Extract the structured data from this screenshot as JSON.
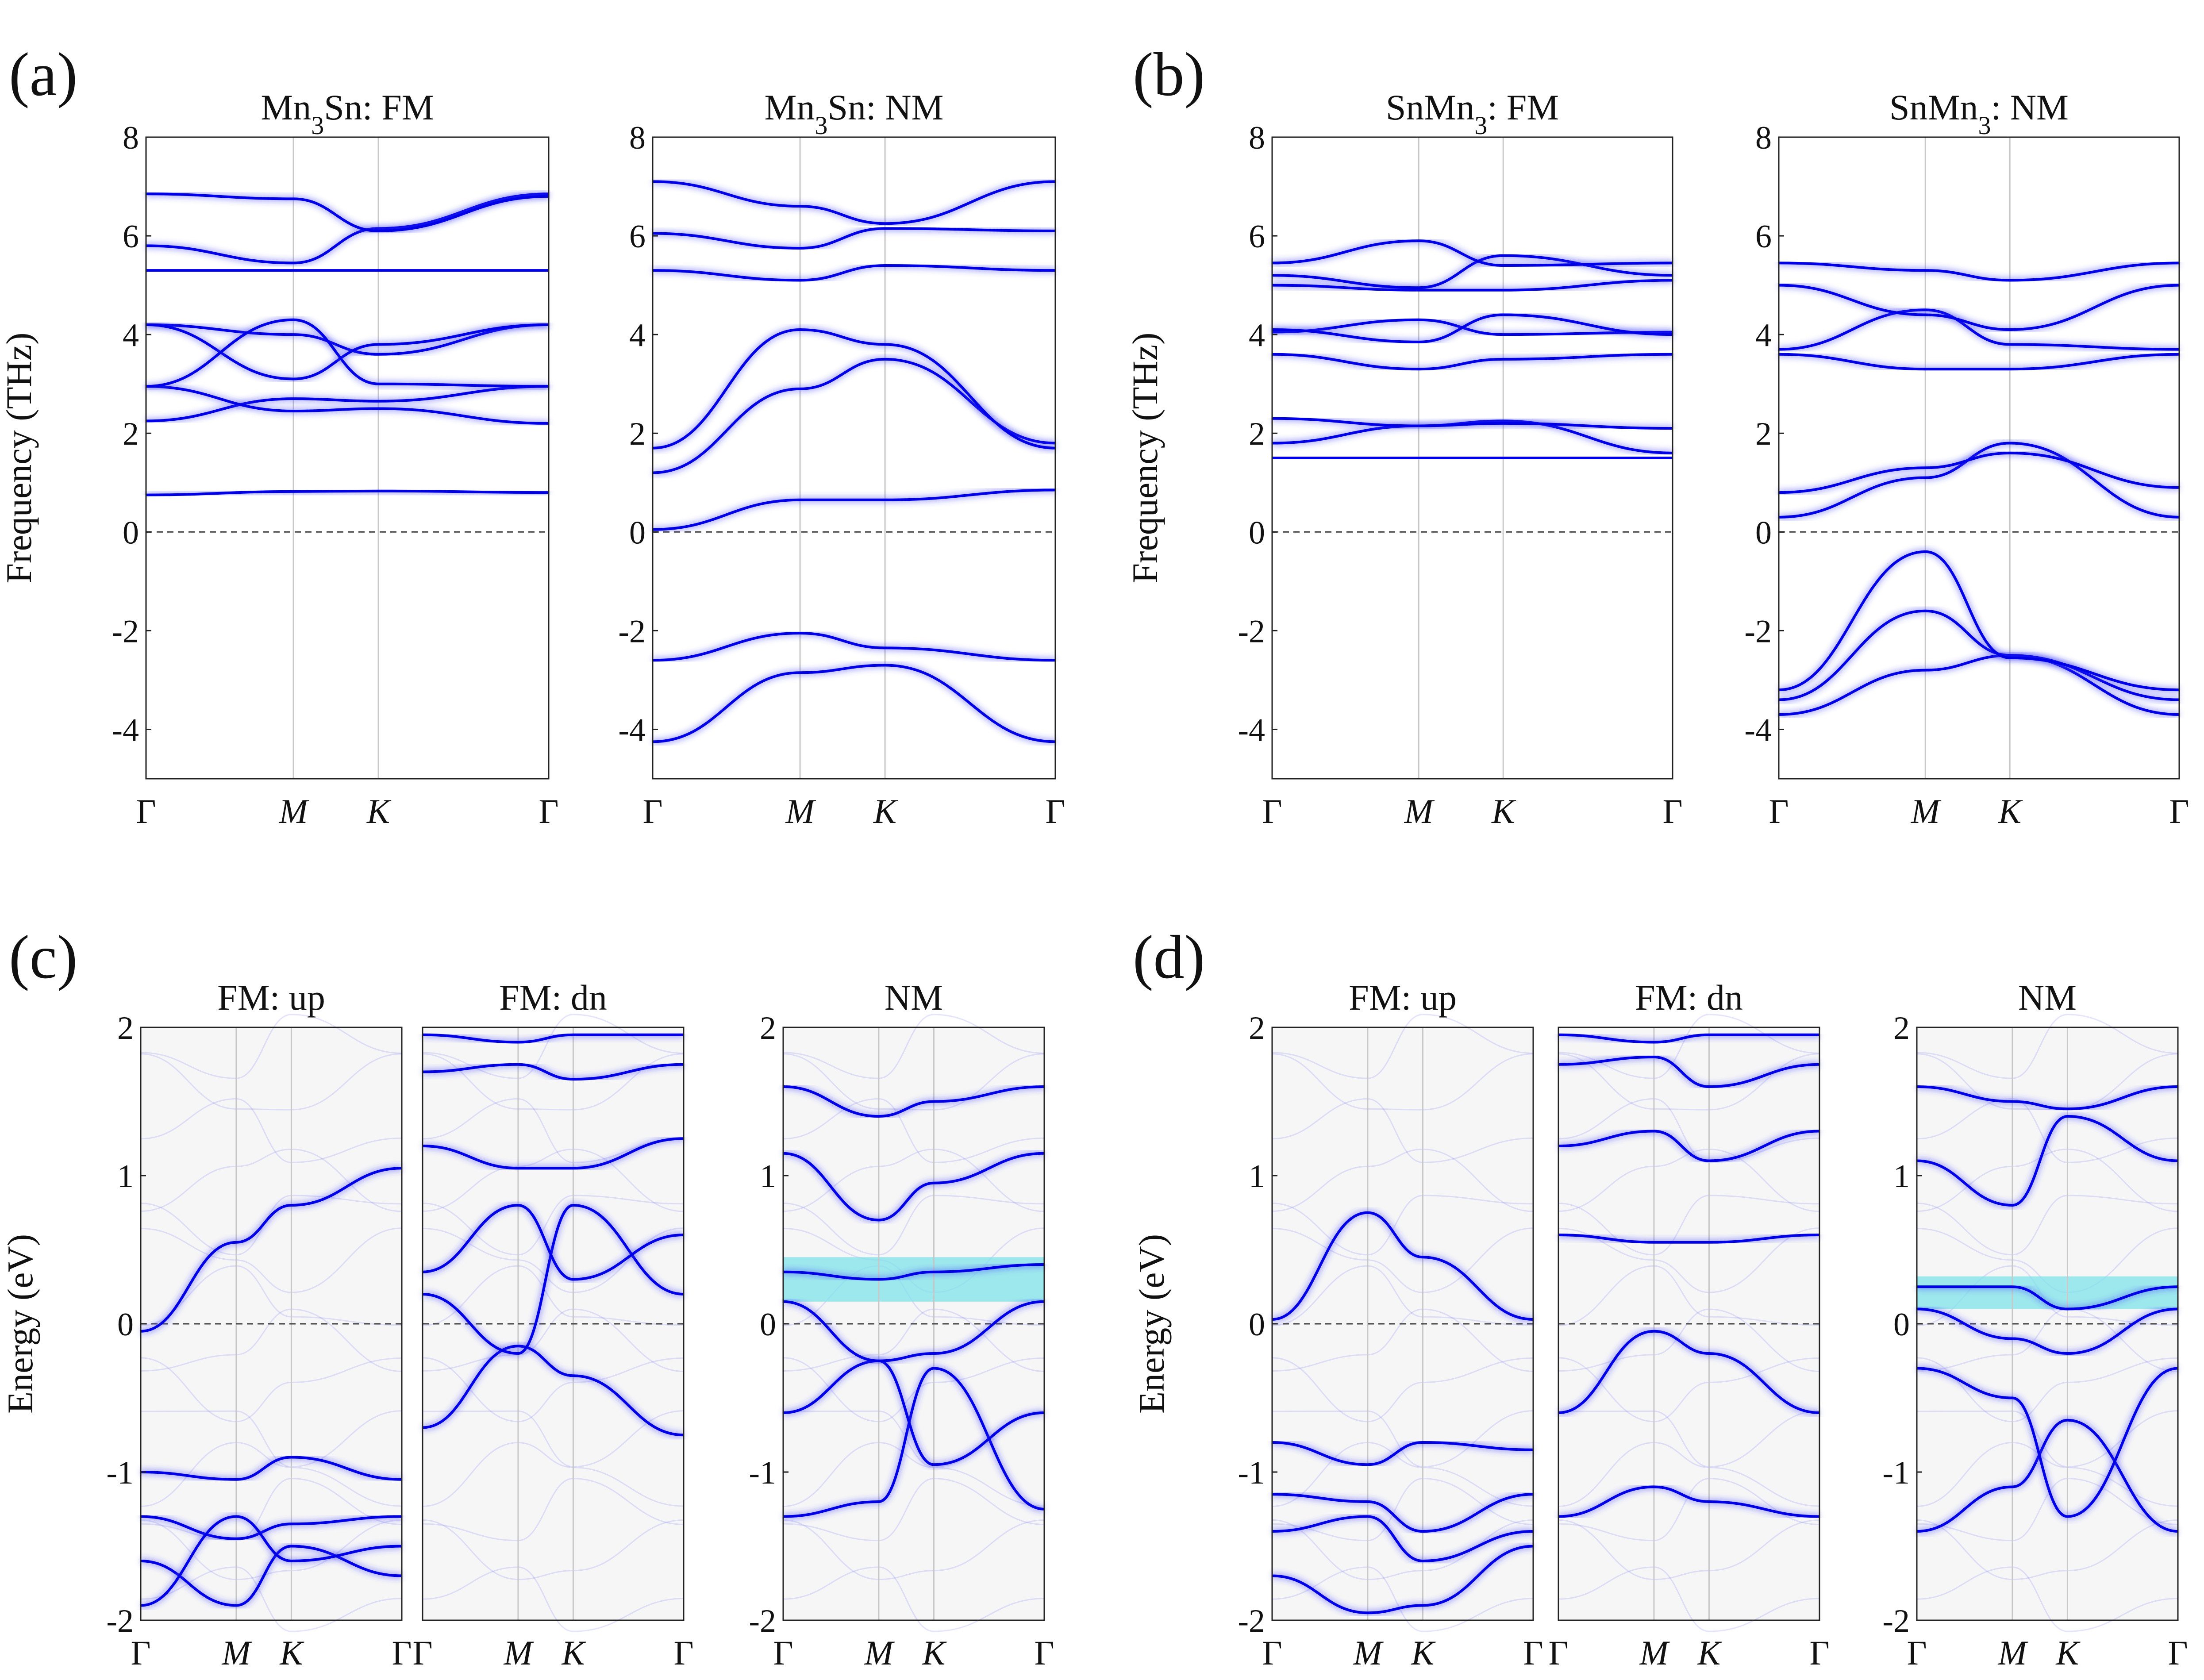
{
  "figure": {
    "panel_labels": [
      "(a)",
      "(b)",
      "(c)",
      "(d)"
    ]
  },
  "chart_data": [
    {
      "type": "line",
      "id": "a1",
      "panel": "(a)",
      "title": "Mn3Sn: FM",
      "title_parts": [
        "Mn",
        "3",
        "Sn:  FM"
      ],
      "ylabel": "Frequency (THz)",
      "ylim": [
        -5,
        8
      ],
      "yticks": [
        8,
        6,
        4,
        2,
        0,
        -2,
        -4
      ],
      "kpoints": [
        {
          "label": "Γ",
          "pos": 0
        },
        {
          "label": "M",
          "pos": 0.366
        },
        {
          "label": "K",
          "pos": 0.577
        },
        {
          "label": "Γ",
          "pos": 1
        }
      ],
      "zero_line": 0,
      "series": [
        {
          "name": "band1",
          "values": [
            0.75,
            0.82,
            0.83,
            0.8
          ]
        },
        {
          "name": "band2",
          "values": [
            2.25,
            2.7,
            2.65,
            2.95
          ]
        },
        {
          "name": "band3",
          "values": [
            2.95,
            2.45,
            2.5,
            2.2
          ]
        },
        {
          "name": "band4",
          "values": [
            4.2,
            4.0,
            3.6,
            4.2
          ]
        },
        {
          "name": "band5",
          "values": [
            4.2,
            3.1,
            3.8,
            4.2
          ]
        },
        {
          "name": "band6",
          "values": [
            2.95,
            4.3,
            3.0,
            2.95
          ]
        },
        {
          "name": "band7",
          "values": [
            5.3,
            5.3,
            5.3,
            5.3
          ]
        },
        {
          "name": "band8",
          "values": [
            5.8,
            5.45,
            6.15,
            6.85
          ]
        },
        {
          "name": "band9",
          "values": [
            6.85,
            6.75,
            6.1,
            6.8
          ]
        }
      ]
    },
    {
      "type": "line",
      "id": "a2",
      "panel": "(a)",
      "title": "Mn3Sn: NM",
      "title_parts": [
        "Mn",
        "3",
        "Sn:  NM"
      ],
      "ylabel": "",
      "ylim": [
        -5,
        8
      ],
      "yticks": [
        8,
        6,
        4,
        2,
        0,
        -2,
        -4
      ],
      "kpoints": [
        {
          "label": "Γ",
          "pos": 0
        },
        {
          "label": "M",
          "pos": 0.366
        },
        {
          "label": "K",
          "pos": 0.577
        },
        {
          "label": "Γ",
          "pos": 1
        }
      ],
      "zero_line": 0,
      "series": [
        {
          "name": "band1",
          "values": [
            -4.25,
            -2.85,
            -2.7,
            -4.25
          ]
        },
        {
          "name": "band2",
          "values": [
            -2.6,
            -2.05,
            -2.35,
            -2.6
          ]
        },
        {
          "name": "band3",
          "values": [
            0.05,
            0.65,
            0.65,
            0.85
          ]
        },
        {
          "name": "band4",
          "values": [
            1.2,
            2.9,
            3.5,
            1.8
          ]
        },
        {
          "name": "band5",
          "values": [
            1.7,
            4.1,
            3.8,
            1.7
          ]
        },
        {
          "name": "band6",
          "values": [
            5.3,
            5.1,
            5.4,
            5.3
          ]
        },
        {
          "name": "band7",
          "values": [
            6.05,
            5.75,
            6.15,
            6.1
          ]
        },
        {
          "name": "band8",
          "values": [
            7.1,
            6.6,
            6.25,
            7.1
          ]
        }
      ]
    },
    {
      "type": "line",
      "id": "b1",
      "panel": "(b)",
      "title": "SnMn3: FM",
      "title_parts": [
        "SnMn",
        "3",
        ":  FM"
      ],
      "ylabel": "Frequency (THz)",
      "ylim": [
        -5,
        8
      ],
      "yticks": [
        8,
        6,
        4,
        2,
        0,
        -2,
        -4
      ],
      "kpoints": [
        {
          "label": "Γ",
          "pos": 0
        },
        {
          "label": "M",
          "pos": 0.366
        },
        {
          "label": "K",
          "pos": 0.577
        },
        {
          "label": "Γ",
          "pos": 1
        }
      ],
      "zero_line": 0,
      "series": [
        {
          "name": "band1",
          "values": [
            1.5,
            1.5,
            1.5,
            1.5
          ]
        },
        {
          "name": "band2",
          "values": [
            1.8,
            2.15,
            2.25,
            1.6
          ]
        },
        {
          "name": "band3",
          "values": [
            2.3,
            2.15,
            2.2,
            2.1
          ]
        },
        {
          "name": "band4",
          "values": [
            3.6,
            3.3,
            3.5,
            3.6
          ]
        },
        {
          "name": "band5",
          "values": [
            4.05,
            4.3,
            4.0,
            4.05
          ]
        },
        {
          "name": "band6",
          "values": [
            4.1,
            3.85,
            4.4,
            4.0
          ]
        },
        {
          "name": "band7",
          "values": [
            5.0,
            4.9,
            4.9,
            5.1
          ]
        },
        {
          "name": "band8",
          "values": [
            5.2,
            4.95,
            5.6,
            5.2
          ]
        },
        {
          "name": "band9",
          "values": [
            5.45,
            5.9,
            5.4,
            5.45
          ]
        }
      ]
    },
    {
      "type": "line",
      "id": "b2",
      "panel": "(b)",
      "title": "SnMn3: NM",
      "title_parts": [
        "SnMn",
        "3",
        ":  NM"
      ],
      "ylabel": "",
      "ylim": [
        -5,
        8
      ],
      "yticks": [
        8,
        6,
        4,
        2,
        0,
        -2,
        -4
      ],
      "kpoints": [
        {
          "label": "Γ",
          "pos": 0
        },
        {
          "label": "M",
          "pos": 0.366
        },
        {
          "label": "K",
          "pos": 0.577
        },
        {
          "label": "Γ",
          "pos": 1
        }
      ],
      "zero_line": 0,
      "series": [
        {
          "name": "band1",
          "values": [
            -3.7,
            -2.8,
            -2.5,
            -3.7
          ]
        },
        {
          "name": "band2",
          "values": [
            -3.4,
            -1.6,
            -2.5,
            -3.4
          ]
        },
        {
          "name": "band3",
          "values": [
            -3.2,
            -0.4,
            -2.55,
            -3.2
          ]
        },
        {
          "name": "band4",
          "values": [
            0.3,
            1.1,
            1.8,
            0.3
          ]
        },
        {
          "name": "band5",
          "values": [
            0.8,
            1.3,
            1.6,
            0.9
          ]
        },
        {
          "name": "band6",
          "values": [
            3.6,
            3.3,
            3.3,
            3.6
          ]
        },
        {
          "name": "band7",
          "values": [
            3.7,
            4.5,
            3.8,
            3.7
          ]
        },
        {
          "name": "band8",
          "values": [
            5.0,
            4.4,
            4.1,
            5.0
          ]
        },
        {
          "name": "band9",
          "values": [
            5.45,
            5.3,
            5.1,
            5.45
          ]
        }
      ]
    },
    {
      "type": "line",
      "id": "c1",
      "panel": "(c)",
      "title": "FM: up",
      "title_parts": [
        "FM:  up"
      ],
      "ylabel": "Energy (eV)",
      "ylim": [
        -2,
        2
      ],
      "yticks": [
        2,
        1,
        0,
        -1,
        -2
      ],
      "kpoints": [
        {
          "label": "Γ",
          "pos": 0
        },
        {
          "label": "M",
          "pos": 0.366
        },
        {
          "label": "K",
          "pos": 0.577
        },
        {
          "label": "Γ",
          "pos": 1
        }
      ],
      "zero_line": 0,
      "series": [
        {
          "name": "band1",
          "values": [
            -0.05,
            0.55,
            0.8,
            1.05
          ]
        },
        {
          "name": "band2",
          "values": [
            -1.0,
            -1.05,
            -0.9,
            -1.05
          ]
        },
        {
          "name": "band3",
          "values": [
            -1.3,
            -1.45,
            -1.35,
            -1.3
          ]
        },
        {
          "name": "band4",
          "values": [
            -1.6,
            -1.9,
            -1.5,
            -1.7
          ]
        },
        {
          "name": "band5",
          "values": [
            -1.9,
            -1.3,
            -1.6,
            -1.5
          ]
        }
      ]
    },
    {
      "type": "line",
      "id": "c2",
      "panel": "(c)",
      "title": "FM: dn",
      "title_parts": [
        "FM:  dn"
      ],
      "ylabel": "",
      "ylim": [
        -2,
        2
      ],
      "yticks": [],
      "kpoints": [
        {
          "label": "Γ",
          "pos": 0
        },
        {
          "label": "M",
          "pos": 0.366
        },
        {
          "label": "K",
          "pos": 0.577
        },
        {
          "label": "Γ",
          "pos": 1
        }
      ],
      "zero_line": 0,
      "series": [
        {
          "name": "band1",
          "values": [
            -0.7,
            -0.15,
            -0.35,
            -0.75
          ]
        },
        {
          "name": "band2",
          "values": [
            0.2,
            -0.2,
            0.8,
            0.2
          ]
        },
        {
          "name": "band3",
          "values": [
            0.35,
            0.8,
            0.3,
            0.6
          ]
        },
        {
          "name": "band4",
          "values": [
            1.2,
            1.05,
            1.05,
            1.25
          ]
        },
        {
          "name": "band5",
          "values": [
            1.7,
            1.75,
            1.65,
            1.75
          ]
        },
        {
          "name": "band6",
          "values": [
            1.95,
            1.9,
            1.95,
            1.95
          ]
        }
      ]
    },
    {
      "type": "line",
      "id": "c3",
      "panel": "(c)",
      "title": "NM",
      "title_parts": [
        "NM"
      ],
      "ylabel": "",
      "ylim": [
        -2,
        2
      ],
      "yticks": [
        2,
        1,
        0,
        -1,
        -2
      ],
      "kpoints": [
        {
          "label": "Γ",
          "pos": 0
        },
        {
          "label": "M",
          "pos": 0.366
        },
        {
          "label": "K",
          "pos": 0.577
        },
        {
          "label": "Γ",
          "pos": 1
        }
      ],
      "zero_line": 0,
      "highlight_band": [
        0.15,
        0.45
      ],
      "series": [
        {
          "name": "band1",
          "values": [
            -1.3,
            -1.2,
            -0.3,
            -1.25
          ]
        },
        {
          "name": "band2",
          "values": [
            -0.6,
            -0.25,
            -0.95,
            -0.6
          ]
        },
        {
          "name": "band3",
          "values": [
            0.15,
            -0.25,
            -0.2,
            0.15
          ]
        },
        {
          "name": "band4",
          "values": [
            0.35,
            0.3,
            0.35,
            0.4
          ]
        },
        {
          "name": "band5",
          "values": [
            1.15,
            0.7,
            0.95,
            1.15
          ]
        },
        {
          "name": "band6",
          "values": [
            1.6,
            1.4,
            1.5,
            1.6
          ]
        }
      ]
    },
    {
      "type": "line",
      "id": "d1",
      "panel": "(d)",
      "title": "FM: up",
      "title_parts": [
        "FM:  up"
      ],
      "ylabel": "Energy (eV)",
      "ylim": [
        -2,
        2
      ],
      "yticks": [
        2,
        1,
        0,
        -1,
        -2
      ],
      "kpoints": [
        {
          "label": "Γ",
          "pos": 0
        },
        {
          "label": "M",
          "pos": 0.366
        },
        {
          "label": "K",
          "pos": 0.577
        },
        {
          "label": "Γ",
          "pos": 1
        }
      ],
      "zero_line": 0,
      "series": [
        {
          "name": "band1",
          "values": [
            0.03,
            0.75,
            0.45,
            0.03
          ]
        },
        {
          "name": "band2",
          "values": [
            -0.8,
            -0.95,
            -0.8,
            -0.85
          ]
        },
        {
          "name": "band3",
          "values": [
            -1.15,
            -1.2,
            -1.4,
            -1.15
          ]
        },
        {
          "name": "band4",
          "values": [
            -1.4,
            -1.3,
            -1.6,
            -1.4
          ]
        },
        {
          "name": "band5",
          "values": [
            -1.7,
            -1.95,
            -1.9,
            -1.5
          ]
        }
      ]
    },
    {
      "type": "line",
      "id": "d2",
      "panel": "(d)",
      "title": "FM: dn",
      "title_parts": [
        "FM:  dn"
      ],
      "ylabel": "",
      "ylim": [
        -2,
        2
      ],
      "yticks": [],
      "kpoints": [
        {
          "label": "Γ",
          "pos": 0
        },
        {
          "label": "M",
          "pos": 0.366
        },
        {
          "label": "K",
          "pos": 0.577
        },
        {
          "label": "Γ",
          "pos": 1
        }
      ],
      "zero_line": 0,
      "series": [
        {
          "name": "band1",
          "values": [
            -0.6,
            -0.05,
            -0.2,
            -0.6
          ]
        },
        {
          "name": "band2",
          "values": [
            -1.3,
            -1.1,
            -1.2,
            -1.3
          ]
        },
        {
          "name": "band3",
          "values": [
            0.6,
            0.55,
            0.55,
            0.6
          ]
        },
        {
          "name": "band4",
          "values": [
            1.2,
            1.3,
            1.1,
            1.3
          ]
        },
        {
          "name": "band5",
          "values": [
            1.75,
            1.8,
            1.6,
            1.75
          ]
        },
        {
          "name": "band6",
          "values": [
            1.95,
            1.9,
            1.95,
            1.95
          ]
        }
      ]
    },
    {
      "type": "line",
      "id": "d3",
      "panel": "(d)",
      "title": "NM",
      "title_parts": [
        "NM"
      ],
      "ylabel": "",
      "ylim": [
        -2,
        2
      ],
      "yticks": [
        2,
        1,
        0,
        -1,
        -2
      ],
      "kpoints": [
        {
          "label": "Γ",
          "pos": 0
        },
        {
          "label": "M",
          "pos": 0.366
        },
        {
          "label": "K",
          "pos": 0.577
        },
        {
          "label": "Γ",
          "pos": 1
        }
      ],
      "zero_line": 0,
      "highlight_band": [
        0.1,
        0.32
      ],
      "series": [
        {
          "name": "band1",
          "values": [
            -1.4,
            -1.1,
            -0.65,
            -1.4
          ]
        },
        {
          "name": "band2",
          "values": [
            -0.3,
            -0.5,
            -1.3,
            -0.3
          ]
        },
        {
          "name": "band3",
          "values": [
            0.1,
            -0.1,
            -0.2,
            0.1
          ]
        },
        {
          "name": "band4",
          "values": [
            0.25,
            0.25,
            0.1,
            0.25
          ]
        },
        {
          "name": "band5",
          "values": [
            1.1,
            0.8,
            1.4,
            1.1
          ]
        },
        {
          "name": "band6",
          "values": [
            1.6,
            1.5,
            1.45,
            1.6
          ]
        }
      ]
    }
  ]
}
